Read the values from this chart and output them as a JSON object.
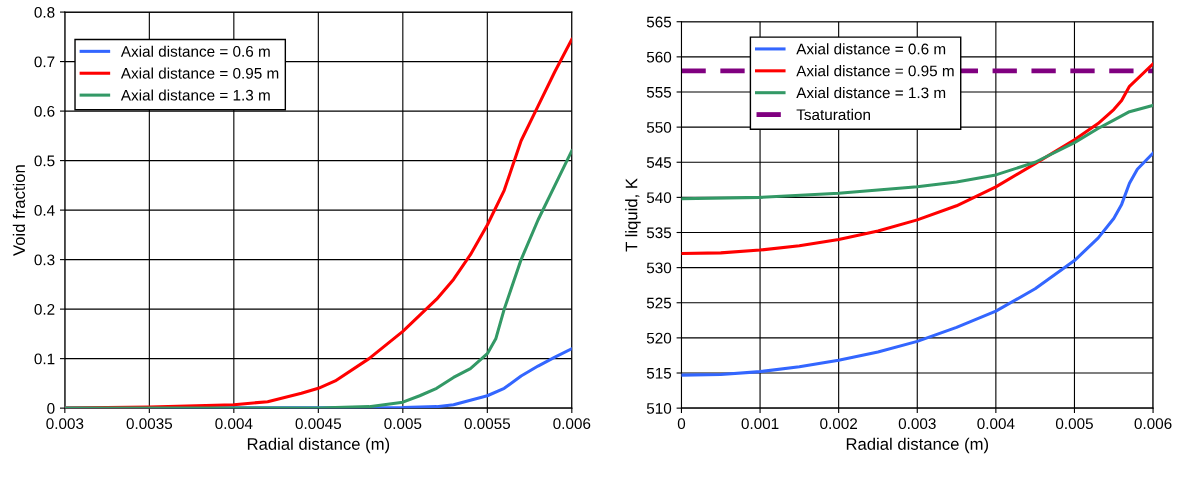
{
  "chart_data": [
    {
      "type": "line",
      "xlabel": "Radial distance (m)",
      "ylabel": "Void fraction",
      "xlim": [
        0.003,
        0.006
      ],
      "ylim": [
        0,
        0.8
      ],
      "xticks": [
        0.003,
        0.0035,
        0.004,
        0.0045,
        0.005,
        0.0055,
        0.006
      ],
      "yticks": [
        0,
        0.1,
        0.2,
        0.3,
        0.4,
        0.5,
        0.6,
        0.7,
        0.8
      ],
      "grid": true,
      "legend": "top left",
      "series": [
        {
          "name": "Axial distance = 0.6 m",
          "color": "#3366ff",
          "x": [
            0.003,
            0.005,
            0.0052,
            0.0053,
            0.0054,
            0.0055,
            0.0056,
            0.0057,
            0.0058,
            0.0059,
            0.006
          ],
          "values": [
            0,
            0.001,
            0.003,
            0.007,
            0.016,
            0.025,
            0.04,
            0.065,
            0.085,
            0.103,
            0.12
          ]
        },
        {
          "name": "Axial distance = 0.95 m",
          "color": "#ff0000",
          "x": [
            0.003,
            0.0035,
            0.004,
            0.0042,
            0.0044,
            0.0045,
            0.0046,
            0.0048,
            0.005,
            0.0052,
            0.0053,
            0.0054,
            0.0055,
            0.0056,
            0.0057,
            0.0058,
            0.0059,
            0.006
          ],
          "values": [
            0,
            0.002,
            0.007,
            0.013,
            0.03,
            0.04,
            0.055,
            0.1,
            0.155,
            0.22,
            0.26,
            0.31,
            0.37,
            0.44,
            0.54,
            0.61,
            0.68,
            0.745
          ]
        },
        {
          "name": "Axial distance = 1.3 m",
          "color": "#339966",
          "x": [
            0.003,
            0.0045,
            0.0048,
            0.005,
            0.0051,
            0.0052,
            0.0053,
            0.0054,
            0.0055,
            0.00555,
            0.0056,
            0.0057,
            0.0058,
            0.0059,
            0.006
          ],
          "values": [
            0,
            0,
            0.003,
            0.012,
            0.025,
            0.04,
            0.062,
            0.08,
            0.11,
            0.14,
            0.2,
            0.3,
            0.38,
            0.45,
            0.52
          ]
        }
      ]
    },
    {
      "type": "line",
      "xlabel": "Radial distance (m)",
      "ylabel": "T liquid, K",
      "xlim": [
        0,
        0.006
      ],
      "ylim": [
        510,
        565
      ],
      "xticks": [
        0,
        0.001,
        0.002,
        0.003,
        0.004,
        0.005,
        0.006
      ],
      "yticks": [
        510,
        515,
        520,
        525,
        530,
        535,
        540,
        545,
        550,
        555,
        560,
        565
      ],
      "grid": true,
      "legend": "top",
      "series": [
        {
          "name": "Axial distance = 0.6 m",
          "color": "#3366ff",
          "x": [
            0,
            0.0005,
            0.001,
            0.0015,
            0.002,
            0.0025,
            0.003,
            0.0035,
            0.004,
            0.0045,
            0.005,
            0.0053,
            0.0055,
            0.0056,
            0.0057,
            0.0058,
            0.006
          ],
          "values": [
            514.7,
            514.8,
            515.2,
            515.9,
            516.8,
            518.0,
            519.5,
            521.5,
            523.8,
            527.0,
            531.0,
            534.2,
            537,
            539,
            542,
            544,
            546.3
          ]
        },
        {
          "name": "Axial distance = 0.95 m",
          "color": "#ff0000",
          "x": [
            0,
            0.0005,
            0.001,
            0.0015,
            0.002,
            0.0025,
            0.003,
            0.0035,
            0.004,
            0.0045,
            0.005,
            0.0053,
            0.0055,
            0.0056,
            0.0057,
            0.006
          ],
          "values": [
            532.0,
            532.1,
            532.5,
            533.1,
            534.0,
            535.2,
            536.8,
            538.8,
            541.5,
            544.8,
            548.2,
            550.5,
            552.5,
            553.8,
            555.8,
            559
          ]
        },
        {
          "name": "Axial distance = 1.3 m",
          "color": "#339966",
          "x": [
            0,
            0.001,
            0.002,
            0.003,
            0.0035,
            0.004,
            0.0045,
            0.005,
            0.0053,
            0.0055,
            0.0057,
            0.006
          ],
          "values": [
            539.8,
            540.0,
            540.6,
            541.5,
            542.2,
            543.2,
            545.0,
            547.8,
            549.8,
            551.0,
            552.2,
            553.1
          ]
        }
      ],
      "ref_lines": [
        {
          "axis": "y",
          "value": 558,
          "label": "Tsaturation",
          "color": "#800080",
          "line_style": "dashed"
        }
      ]
    }
  ]
}
